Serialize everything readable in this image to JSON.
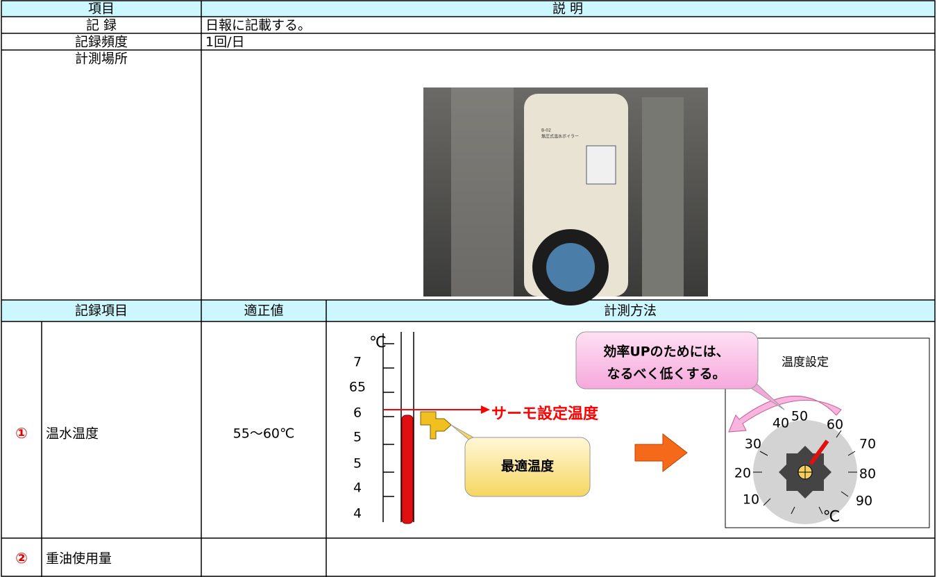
{
  "header": {
    "item": "項目",
    "description": "説 明"
  },
  "rows": [
    {
      "label": "記 録",
      "value": "日報に記載する。"
    },
    {
      "label": "記録頻度",
      "value": "1回/日"
    },
    {
      "label": "計測場所"
    }
  ],
  "photo": {
    "code": "B-02",
    "caption": "無圧式温水ボイラー"
  },
  "subheader": [
    "記録項目",
    "適正値",
    "計測方法"
  ],
  "items": [
    {
      "num": "①",
      "name": "温水温度",
      "value": "55～60℃"
    },
    {
      "num": "②",
      "name": "重油使用量"
    }
  ],
  "diagram": {
    "unit": "℃",
    "scale": [
      "7",
      "65",
      "6",
      "5",
      "5",
      "4",
      "4"
    ],
    "thermo_label": "サーモ設定温度",
    "optimal": "最適温度",
    "callout": [
      "効率UPのためには、",
      "なるべく低くする。"
    ],
    "dial_title": "温度設定",
    "dial": [
      "10",
      "20",
      "30",
      "40",
      "50",
      "60",
      "70",
      "80",
      "90"
    ],
    "dial_unit": "℃"
  }
}
